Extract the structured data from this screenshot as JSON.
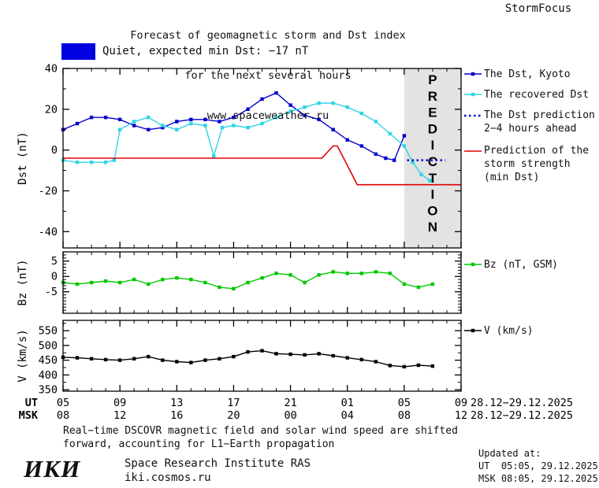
{
  "header": {
    "title_line1": "Forecast of geomagnetic storm and Dst index",
    "title_line2": "for the next several hours",
    "title_line3": "www.spaceweather.ru",
    "brand": "StormFocus"
  },
  "status": {
    "label": "Quiet, expected min Dst: −17 nT",
    "swatch_color": "#0000e0"
  },
  "legend_main": [
    {
      "id": "dst-kyoto",
      "label": "The Dst, Kyoto",
      "color": "#0000cd",
      "style": "solid-square"
    },
    {
      "id": "recovered-dst",
      "label": "The recovered Dst",
      "color": "#2fd4e6",
      "style": "solid-square"
    },
    {
      "id": "dst-prediction",
      "label": "The Dst prediction",
      "label2": "2−4 hours ahead",
      "color": "#0000cd",
      "style": "dotted"
    },
    {
      "id": "storm-strength",
      "label": "Prediction of the",
      "label2": "storm strength",
      "label3": "(min Dst)",
      "color": "#e00000",
      "style": "solid"
    }
  ],
  "legend_bz": {
    "id": "bz",
    "label": "Bz (nT, GSM)",
    "color": "#00c800",
    "style": "solid-square"
  },
  "legend_v": {
    "id": "v",
    "label": "V (km/s)",
    "color": "#000000",
    "style": "solid-square"
  },
  "xaxis": {
    "ut_header": "UT",
    "msk_header": "MSK",
    "ticks": [
      5,
      9,
      13,
      17,
      21,
      25,
      29,
      33
    ],
    "ut_labels": [
      "05",
      "09",
      "13",
      "17",
      "21",
      "01",
      "05",
      "09"
    ],
    "msk_labels": [
      "08",
      "12",
      "16",
      "20",
      "00",
      "04",
      "08",
      "12"
    ],
    "ut_date_range": "28.12−29.12.2025",
    "msk_date_range": "28.12−29.12.2025"
  },
  "footer": {
    "line1": "Real−time DSCOVR magnetic field and solar wind speed are shifted",
    "line2": "forward, accounting for L1−Earth propagation"
  },
  "updated": {
    "label": "Updated at:",
    "ut": "UT  05:05, 29.12.2025",
    "msk": "MSK 08:05, 29.12.2025"
  },
  "institute": {
    "logo": "ИКИ",
    "name": "Space Research Institute RAS",
    "site": "iki.cosmos.ru"
  },
  "chart_data": [
    {
      "type": "line",
      "panel": "dst",
      "title": "Dst index: observed, recovered and predicted",
      "ylabel": "Dst (nT)",
      "ylim": [
        -48,
        40
      ],
      "yticks": [
        -40,
        -20,
        0,
        20,
        40
      ],
      "yminor_step": 10,
      "xlim": [
        5,
        33
      ],
      "xticks": [
        5,
        9,
        13,
        17,
        21,
        25,
        29,
        33
      ],
      "xminor_step": 1,
      "x_unit": "hours UT, 28.12−29.12.2025",
      "prediction_band_start": 29,
      "prediction_label": "PREDICTION",
      "series": [
        {
          "id": "dst-kyoto",
          "name": "The Dst, Kyoto",
          "color": "#0000cd",
          "marker": "square",
          "x": [
            5,
            6,
            7,
            8,
            9,
            10,
            11,
            12,
            13,
            14,
            15,
            16,
            17,
            18,
            19,
            20,
            21,
            22,
            23,
            24,
            25,
            26,
            27,
            27.7,
            28.3,
            29
          ],
          "y": [
            10,
            13,
            16,
            16,
            15,
            12,
            10,
            11,
            14,
            15,
            15,
            14,
            16,
            20,
            25,
            28,
            22,
            17,
            15,
            10,
            5,
            2,
            -2,
            -4,
            -5,
            7
          ]
        },
        {
          "id": "recovered-dst",
          "name": "The recovered Dst",
          "color": "#2fd4e6",
          "marker": "square",
          "x": [
            5,
            6,
            7,
            8,
            8.6,
            9,
            10,
            11,
            12,
            13,
            14,
            15,
            15.6,
            16.2,
            17,
            18,
            19,
            20,
            21,
            22,
            23,
            24,
            25,
            26,
            27,
            28,
            29,
            29.6,
            30.2,
            30.8
          ],
          "y": [
            -5,
            -6,
            -6,
            -6,
            -5,
            10,
            14,
            16,
            12,
            10,
            13,
            12,
            -3,
            11,
            12,
            11,
            13,
            16,
            19,
            21,
            23,
            23,
            21,
            18,
            14,
            8,
            2,
            -6,
            -12,
            -15
          ]
        },
        {
          "id": "dst-prediction",
          "name": "The Dst prediction 2−4 hours ahead",
          "color": "#0000cd",
          "style": "dotted",
          "x": [
            29.2,
            31.9
          ],
          "y": [
            -5,
            -5
          ]
        },
        {
          "id": "storm-strength",
          "name": "Prediction of the storm strength (min Dst)",
          "color": "#e00000",
          "width": 1.6,
          "x": [
            5,
            23.2,
            24,
            24.3,
            25.7,
            33
          ],
          "y": [
            -4,
            -4,
            2,
            2,
            -17,
            -17
          ]
        }
      ]
    },
    {
      "type": "line",
      "panel": "bz",
      "ylabel": "Bz (nT)",
      "ylim": [
        -12,
        8
      ],
      "yticks": [
        -5,
        0,
        5
      ],
      "yminor_step": 1,
      "xlim": [
        5,
        33
      ],
      "xticks": [
        5,
        9,
        13,
        17,
        21,
        25,
        29,
        33
      ],
      "xminor_step": 1,
      "series": [
        {
          "id": "bz",
          "name": "Bz (nT, GSM)",
          "color": "#00c800",
          "marker": "square",
          "x": [
            5,
            6,
            7,
            8,
            9,
            10,
            11,
            12,
            13,
            14,
            15,
            16,
            17,
            18,
            19,
            20,
            21,
            22,
            23,
            24,
            25,
            26,
            27,
            28,
            29,
            30,
            31
          ],
          "y": [
            -2,
            -2.5,
            -2,
            -1.5,
            -2,
            -1,
            -2.5,
            -1,
            -0.5,
            -1,
            -2,
            -3.5,
            -4,
            -2,
            -0.5,
            1,
            0.5,
            -2,
            0.5,
            1.5,
            1,
            1,
            1.5,
            1,
            -2.5,
            -3.5,
            -2.5
          ]
        }
      ]
    },
    {
      "type": "line",
      "panel": "v",
      "ylabel": "V (km/s)",
      "ylim": [
        345,
        585
      ],
      "yticks": [
        350,
        400,
        450,
        500,
        550
      ],
      "yminor_step": 25,
      "xlim": [
        5,
        33
      ],
      "xticks": [
        5,
        9,
        13,
        17,
        21,
        25,
        29,
        33
      ],
      "xminor_step": 1,
      "series": [
        {
          "id": "v",
          "name": "V (km/s)",
          "color": "#000000",
          "marker": "square",
          "x": [
            5,
            6,
            7,
            8,
            9,
            10,
            11,
            12,
            13,
            14,
            15,
            16,
            17,
            18,
            19,
            20,
            21,
            22,
            23,
            24,
            25,
            26,
            27,
            28,
            29,
            30,
            31
          ],
          "y": [
            460,
            458,
            455,
            452,
            450,
            455,
            462,
            450,
            445,
            442,
            450,
            455,
            462,
            478,
            482,
            472,
            470,
            468,
            472,
            465,
            458,
            452,
            445,
            432,
            428,
            433,
            430
          ]
        }
      ]
    }
  ]
}
